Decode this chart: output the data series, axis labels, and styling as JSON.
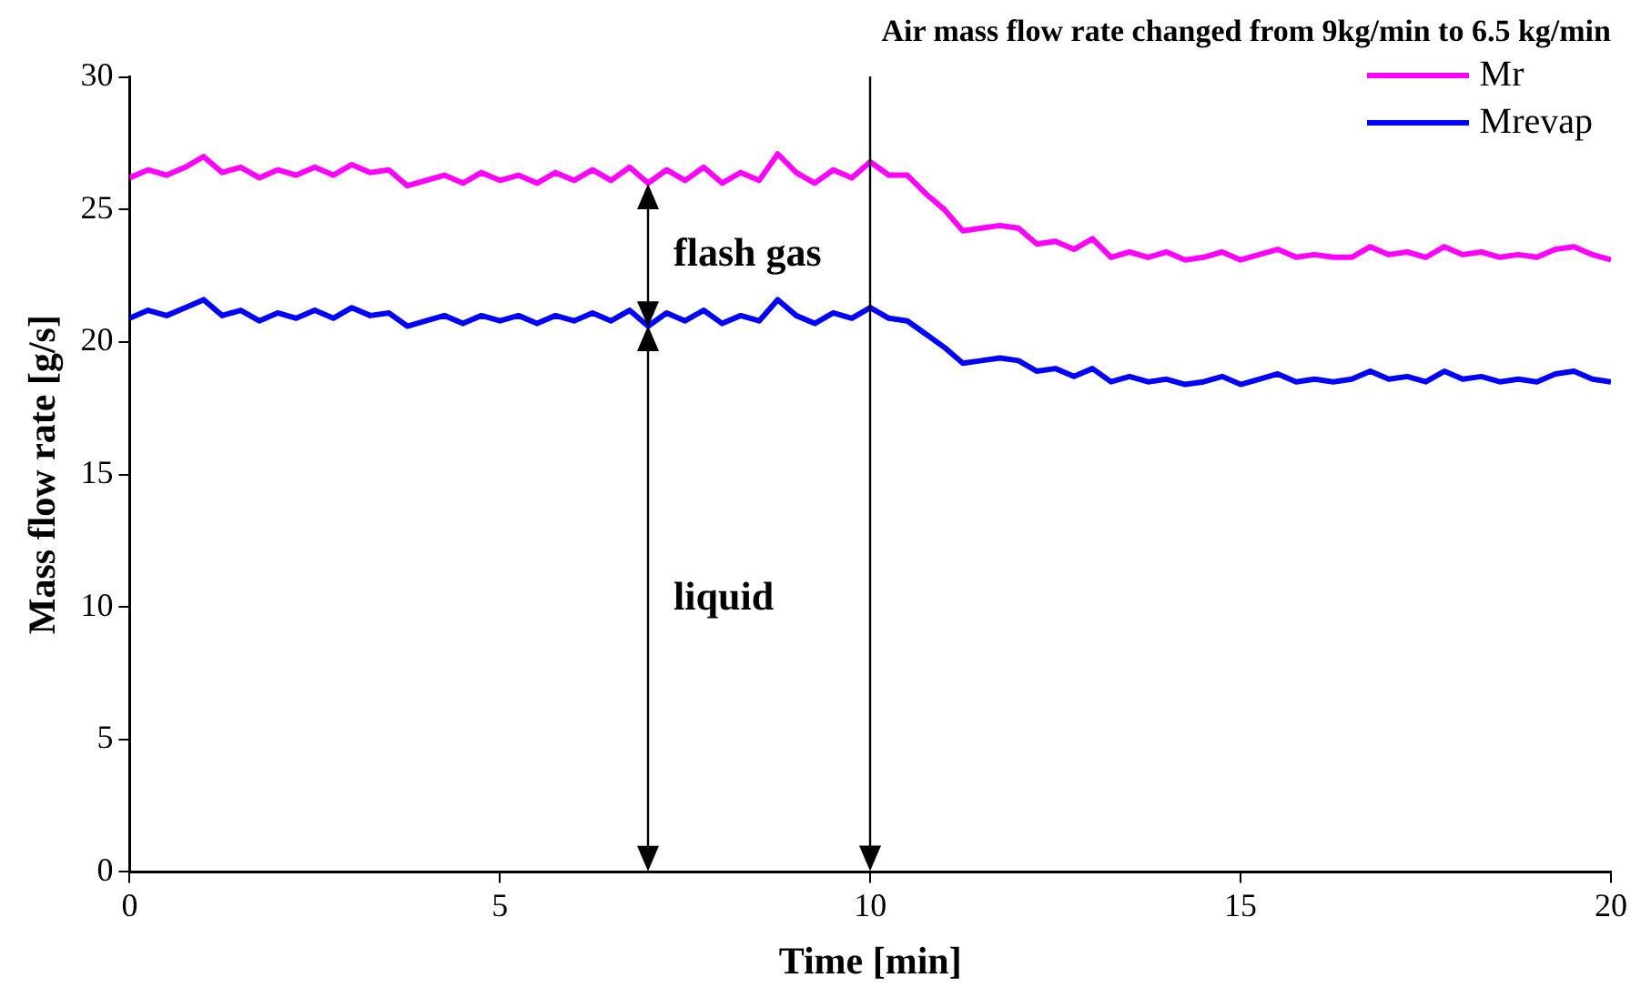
{
  "chart_data": {
    "type": "line",
    "title": "Air mass flow rate changed from 9kg/min to 6.5 kg/min",
    "xlabel": "Time [min]",
    "ylabel": "Mass flow rate [g/s]",
    "x": [
      0,
      0.25,
      0.5,
      0.75,
      1,
      1.25,
      1.5,
      1.75,
      2,
      2.25,
      2.5,
      2.75,
      3,
      3.25,
      3.5,
      3.75,
      4,
      4.25,
      4.5,
      4.75,
      5,
      5.25,
      5.5,
      5.75,
      6,
      6.25,
      6.5,
      6.75,
      7,
      7.25,
      7.5,
      7.75,
      8,
      8.25,
      8.5,
      8.75,
      9,
      9.25,
      9.5,
      9.75,
      10,
      10.25,
      10.5,
      10.75,
      11,
      11.25,
      11.5,
      11.75,
      12,
      12.25,
      12.5,
      12.75,
      13,
      13.25,
      13.5,
      13.75,
      14,
      14.25,
      14.5,
      14.75,
      15,
      15.25,
      15.5,
      15.75,
      16,
      16.25,
      16.5,
      16.75,
      17,
      17.25,
      17.5,
      17.75,
      18,
      18.25,
      18.5,
      18.75,
      19,
      19.25,
      19.5,
      19.75,
      20
    ],
    "series": [
      {
        "name": "Mr",
        "color": "#ff00ff",
        "values": [
          26.2,
          26.5,
          26.3,
          26.6,
          27.0,
          26.4,
          26.6,
          26.2,
          26.5,
          26.3,
          26.6,
          26.3,
          26.7,
          26.4,
          26.5,
          25.9,
          26.1,
          26.3,
          26.0,
          26.4,
          26.1,
          26.3,
          26.0,
          26.4,
          26.1,
          26.5,
          26.1,
          26.6,
          26.0,
          26.5,
          26.1,
          26.6,
          26.0,
          26.4,
          26.1,
          27.1,
          26.4,
          26.0,
          26.5,
          26.2,
          26.8,
          26.3,
          26.3,
          25.6,
          25.0,
          24.2,
          24.3,
          24.4,
          24.3,
          23.7,
          23.8,
          23.5,
          23.9,
          23.2,
          23.4,
          23.2,
          23.4,
          23.1,
          23.2,
          23.4,
          23.1,
          23.3,
          23.5,
          23.2,
          23.3,
          23.2,
          23.2,
          23.6,
          23.3,
          23.4,
          23.2,
          23.6,
          23.3,
          23.4,
          23.2,
          23.3,
          23.2,
          23.5,
          23.6,
          23.3,
          23.1
        ]
      },
      {
        "name": "Mrevap",
        "color": "#0000ff",
        "values": [
          20.9,
          21.2,
          21.0,
          21.3,
          21.6,
          21.0,
          21.2,
          20.8,
          21.1,
          20.9,
          21.2,
          20.9,
          21.3,
          21.0,
          21.1,
          20.6,
          20.8,
          21.0,
          20.7,
          21.0,
          20.8,
          21.0,
          20.7,
          21.0,
          20.8,
          21.1,
          20.8,
          21.2,
          20.6,
          21.1,
          20.8,
          21.2,
          20.7,
          21.0,
          20.8,
          21.6,
          21.0,
          20.7,
          21.1,
          20.9,
          21.3,
          20.9,
          20.8,
          20.3,
          19.8,
          19.2,
          19.3,
          19.4,
          19.3,
          18.9,
          19.0,
          18.7,
          19.0,
          18.5,
          18.7,
          18.5,
          18.6,
          18.4,
          18.5,
          18.7,
          18.4,
          18.6,
          18.8,
          18.5,
          18.6,
          18.5,
          18.6,
          18.9,
          18.6,
          18.7,
          18.5,
          18.9,
          18.6,
          18.7,
          18.5,
          18.6,
          18.5,
          18.8,
          18.9,
          18.6,
          18.5
        ]
      }
    ],
    "xlim": [
      0,
      20
    ],
    "xticks": [
      0,
      5,
      10,
      15,
      20
    ],
    "ylim": [
      0,
      30
    ],
    "yticks": [
      0,
      5,
      10,
      15,
      20,
      25,
      30
    ],
    "ref_lines": [
      {
        "axis": "x",
        "value": 10,
        "color": "#000000"
      }
    ],
    "annotations": [
      "flash gas",
      "liquid"
    ],
    "legend": "top right",
    "grid": false,
    "marker": "none",
    "line_style": "solid"
  }
}
